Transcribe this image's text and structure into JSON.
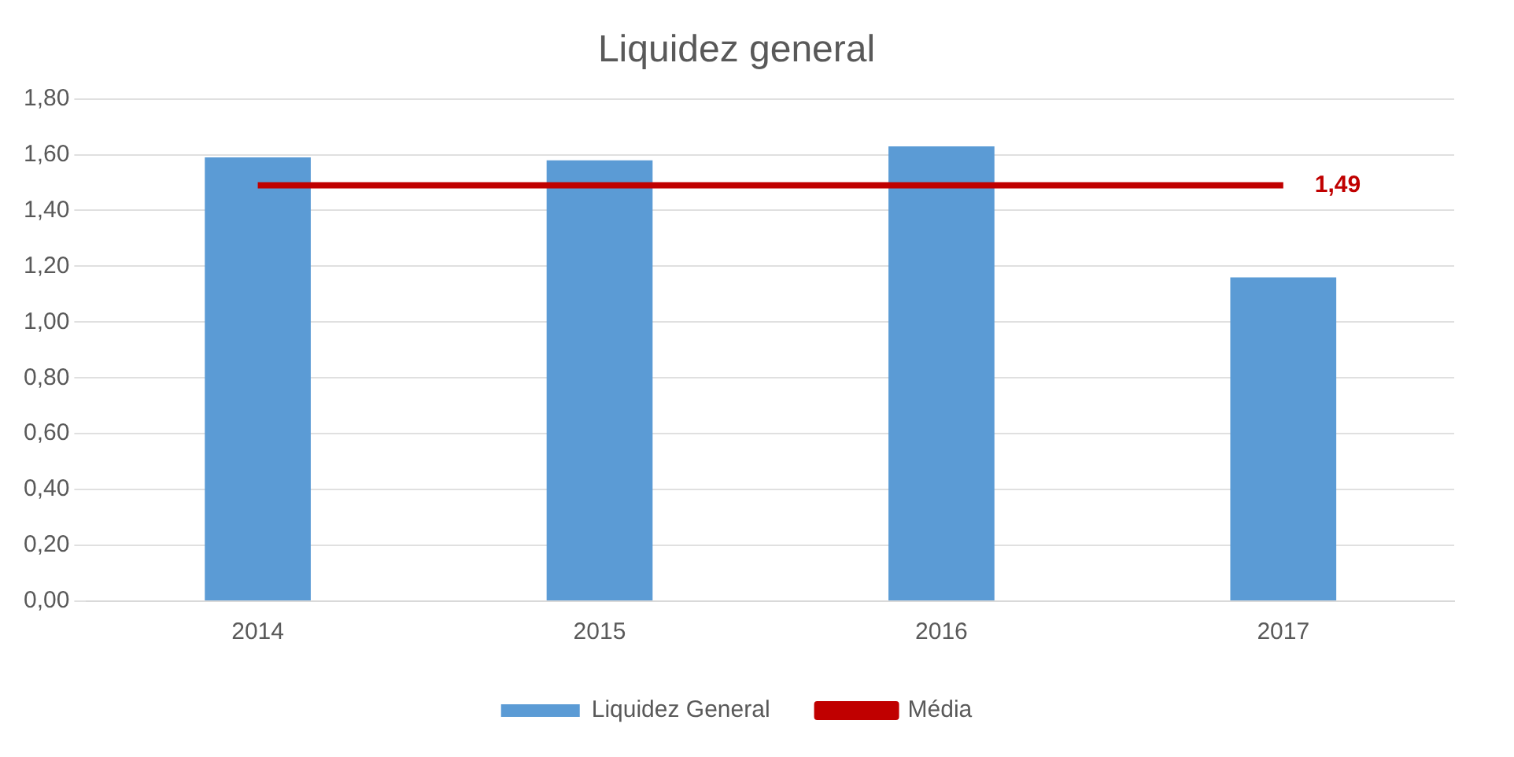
{
  "chart_data": {
    "type": "bar",
    "title": "Liquidez general",
    "categories": [
      "2014",
      "2015",
      "2016",
      "2017"
    ],
    "series": [
      {
        "name": "Liquidez General",
        "color": "#5b9bd5",
        "values": [
          1.59,
          1.58,
          1.63,
          1.16
        ]
      },
      {
        "name": "Média",
        "type": "line",
        "color": "#c00000",
        "values": [
          1.49,
          1.49,
          1.49,
          1.49
        ],
        "value_labels": [
          null,
          null,
          null,
          "1,49"
        ],
        "marker": "none",
        "line_style": "solid"
      }
    ],
    "ylim": [
      0,
      1.8
    ],
    "yticks": [
      {
        "value": 0,
        "label": "0,00"
      },
      {
        "value": 0.2,
        "label": "0,20"
      },
      {
        "value": 0.4,
        "label": "0,40"
      },
      {
        "value": 0.6,
        "label": "0,60"
      },
      {
        "value": 0.8,
        "label": "0,80"
      },
      {
        "value": 1,
        "label": "1,00"
      },
      {
        "value": 1.2,
        "label": "1,20"
      },
      {
        "value": 1.4,
        "label": "1,40"
      },
      {
        "value": 1.6,
        "label": "1,60"
      },
      {
        "value": 1.8,
        "label": "1,80"
      }
    ],
    "grid": "y",
    "legend": "bottom"
  }
}
